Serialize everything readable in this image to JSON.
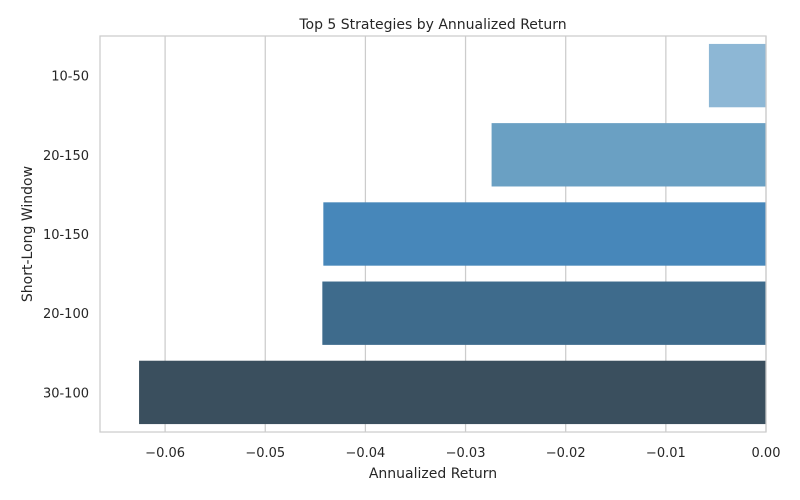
{
  "chart_data": {
    "type": "bar",
    "orientation": "horizontal",
    "title": "Top 5 Strategies by Annualized Return",
    "xlabel": "Annualized Return",
    "ylabel": "Short-Long Window",
    "categories": [
      "10-50",
      "20-150",
      "10-150",
      "20-100",
      "30-100"
    ],
    "values": [
      -0.0057,
      -0.0274,
      -0.0442,
      -0.0443,
      -0.0626
    ],
    "colors": [
      "#8db7d5",
      "#6aa0c3",
      "#4787ba",
      "#3e6b8c",
      "#3a4f5e"
    ],
    "xlim": [
      -0.0665,
      0.0
    ],
    "xticks": [
      -0.06,
      -0.05,
      -0.04,
      -0.03,
      -0.02,
      -0.01,
      0.0
    ],
    "xtick_labels": [
      "−0.06",
      "−0.05",
      "−0.04",
      "−0.03",
      "−0.02",
      "−0.01",
      "0.00"
    ],
    "grid": "vertical",
    "legend": "none"
  }
}
